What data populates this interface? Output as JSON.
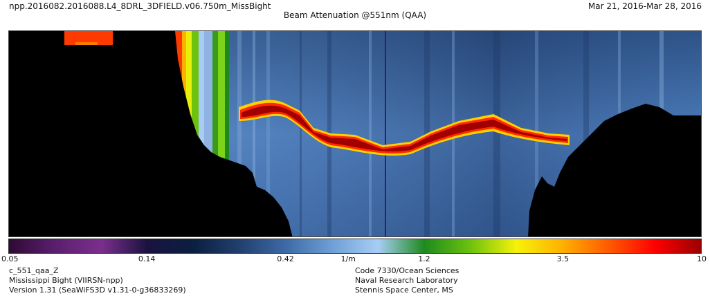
{
  "header": {
    "file_name": "npp.2016082.2016088.L4_8DRL_3DFIELD.v06.750m_MissBight",
    "date_range": "Mar 21, 2016-Mar 28, 2016",
    "title": "Beam Attenuation @551nm (QAA)"
  },
  "colorbar": {
    "ticks": [
      {
        "label": "0.05",
        "frac": 0.0
      },
      {
        "label": "0.14",
        "frac": 0.2
      },
      {
        "label": "0.42",
        "frac": 0.4
      },
      {
        "label": "1/m",
        "frac": 0.49
      },
      {
        "label": "1.2",
        "frac": 0.6
      },
      {
        "label": "3.5",
        "frac": 0.8
      },
      {
        "label": "10",
        "frac": 1.0
      }
    ],
    "colors": [
      "#2e0a33",
      "#5a1f6e",
      "#7b2f8c",
      "#1a1240",
      "#0b1f3f",
      "#21406e",
      "#3d6aa6",
      "#6f9fd6",
      "#a7cdf5",
      "#1e8a1e",
      "#6cc20d",
      "#f6f20a",
      "#ffb000",
      "#ff5a00",
      "#ff0000",
      "#9a0000"
    ]
  },
  "footer": {
    "left": [
      "c_551_qaa_Z",
      "Mississippi Bight (VIIRSN-npp)",
      "Version 1.31 (SeaWiFS3D v1.31-0-g36833269)"
    ],
    "right": [
      "Code 7330/Ocean Sciences",
      "Naval Research Laboratory",
      "Stennis Space Center, MS"
    ]
  }
}
